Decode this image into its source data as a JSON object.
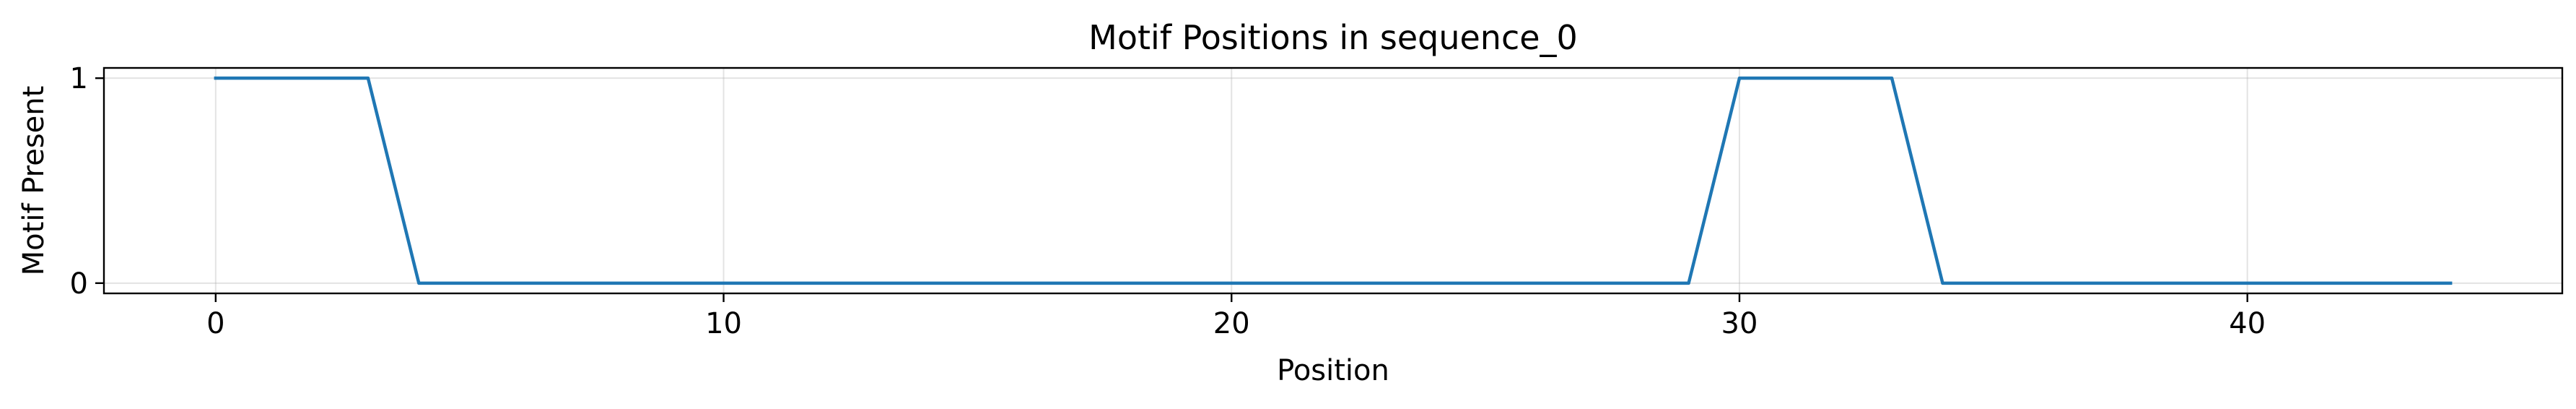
{
  "chart_data": {
    "type": "line",
    "title": "Motif Positions in sequence_0",
    "xlabel": "Position",
    "ylabel": "Motif Present",
    "x": [
      0,
      1,
      2,
      3,
      4,
      5,
      6,
      7,
      8,
      9,
      10,
      11,
      12,
      13,
      14,
      15,
      16,
      17,
      18,
      19,
      20,
      21,
      22,
      23,
      24,
      25,
      26,
      27,
      28,
      29,
      30,
      31,
      32,
      33,
      34,
      35,
      36,
      37,
      38,
      39,
      40,
      41,
      42,
      43,
      44
    ],
    "series": [
      {
        "values": [
          1,
          1,
          1,
          1,
          0,
          0,
          0,
          0,
          0,
          0,
          0,
          0,
          0,
          0,
          0,
          0,
          0,
          0,
          0,
          0,
          0,
          0,
          0,
          0,
          0,
          0,
          0,
          0,
          0,
          0,
          1,
          1,
          1,
          1,
          0,
          0,
          0,
          0,
          0,
          0,
          0,
          0,
          0,
          0,
          0
        ],
        "color": "#1f77b4"
      }
    ],
    "xlim": [
      -2.2,
      46.2
    ],
    "ylim": [
      -0.05,
      1.05
    ],
    "xticks": [
      0,
      10,
      20,
      30,
      40
    ],
    "yticks": [
      0,
      1
    ],
    "xtick_labels": [
      "0",
      "10",
      "20",
      "30",
      "40"
    ],
    "ytick_labels": [
      "0",
      "1"
    ],
    "grid": true,
    "legend": false
  }
}
